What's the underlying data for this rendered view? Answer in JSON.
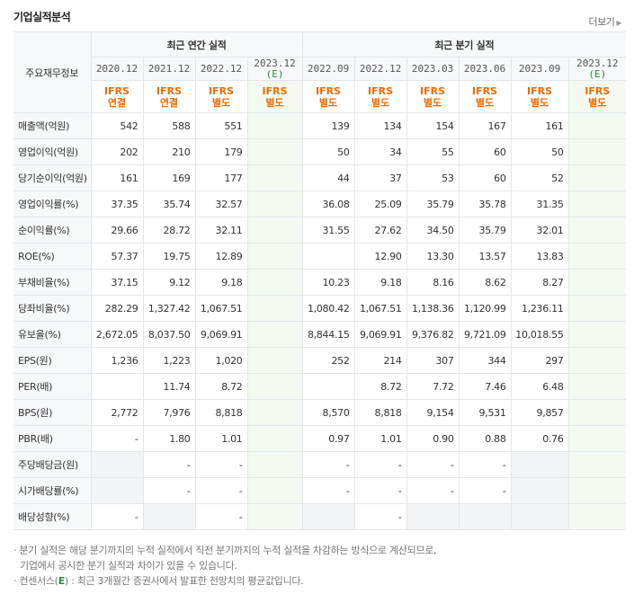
{
  "header": {
    "title": "기업실적분석",
    "more_label": "더보기"
  },
  "table": {
    "corner_label": "주요재무정보",
    "annual_group": "최근 연간 실적",
    "quarter_group": "최근 분기 실적",
    "annual_periods": [
      {
        "label": "2020.12",
        "est": ""
      },
      {
        "label": "2021.12",
        "est": ""
      },
      {
        "label": "2022.12",
        "est": ""
      },
      {
        "label": "2023.12",
        "est": "(E)"
      }
    ],
    "quarter_periods": [
      {
        "label": "2022.09",
        "est": ""
      },
      {
        "label": "2022.12",
        "est": ""
      },
      {
        "label": "2023.03",
        "est": ""
      },
      {
        "label": "2023.06",
        "est": ""
      },
      {
        "label": "2023.09",
        "est": ""
      },
      {
        "label": "2023.12",
        "est": "(E)"
      }
    ],
    "ifrs": [
      [
        "IFRS",
        "연결"
      ],
      [
        "IFRS",
        "연결"
      ],
      [
        "IFRS",
        "별도"
      ],
      [
        "IFRS",
        "별도"
      ],
      [
        "IFRS",
        "별도"
      ],
      [
        "IFRS",
        "별도"
      ],
      [
        "IFRS",
        "별도"
      ],
      [
        "IFRS",
        "별도"
      ],
      [
        "IFRS",
        "별도"
      ],
      [
        "IFRS",
        "별도"
      ]
    ],
    "rows": [
      {
        "label": "매출액(억원)",
        "values": [
          "542",
          "588",
          "551",
          "",
          "139",
          "134",
          "154",
          "167",
          "161",
          ""
        ]
      },
      {
        "label": "영업이익(억원)",
        "values": [
          "202",
          "210",
          "179",
          "",
          "50",
          "34",
          "55",
          "60",
          "50",
          ""
        ]
      },
      {
        "label": "당기순이익(억원)",
        "values": [
          "161",
          "169",
          "177",
          "",
          "44",
          "37",
          "53",
          "60",
          "52",
          ""
        ]
      },
      {
        "label": "영업이익률(%)",
        "values": [
          "37.35",
          "35.74",
          "32.57",
          "",
          "36.08",
          "25.09",
          "35.79",
          "35.78",
          "31.35",
          ""
        ]
      },
      {
        "label": "순이익률(%)",
        "values": [
          "29.66",
          "28.72",
          "32.11",
          "",
          "31.55",
          "27.62",
          "34.50",
          "35.79",
          "32.01",
          ""
        ]
      },
      {
        "label": "ROE(%)",
        "values": [
          "57.37",
          "19.75",
          "12.89",
          "",
          "",
          "12.90",
          "13.30",
          "13.57",
          "13.83",
          ""
        ]
      },
      {
        "label": "부채비율(%)",
        "values": [
          "37.15",
          "9.12",
          "9.18",
          "",
          "10.23",
          "9.18",
          "8.16",
          "8.62",
          "8.27",
          ""
        ]
      },
      {
        "label": "당좌비율(%)",
        "values": [
          "282.29",
          "1,327.42",
          "1,067.51",
          "",
          "1,080.42",
          "1,067.51",
          "1,138.36",
          "1,120.99",
          "1,236.11",
          ""
        ]
      },
      {
        "label": "유보율(%)",
        "values": [
          "2,672.05",
          "8,037.50",
          "9,069.91",
          "",
          "8,844.15",
          "9,069.91",
          "9,376.82",
          "9,721.09",
          "10,018.55",
          ""
        ]
      },
      {
        "label": "EPS(원)",
        "values": [
          "1,236",
          "1,223",
          "1,020",
          "",
          "252",
          "214",
          "307",
          "344",
          "297",
          ""
        ]
      },
      {
        "label": "PER(배)",
        "values": [
          "",
          "11.74",
          "8.72",
          "",
          "",
          "8.72",
          "7.72",
          "7.46",
          "6.48",
          ""
        ]
      },
      {
        "label": "BPS(원)",
        "values": [
          "2,772",
          "7,976",
          "8,818",
          "",
          "8,570",
          "8,818",
          "9,154",
          "9,531",
          "9,857",
          ""
        ]
      },
      {
        "label": "PBR(배)",
        "values": [
          "-",
          "1.80",
          "1.01",
          "",
          "0.97",
          "1.01",
          "0.90",
          "0.88",
          "0.76",
          ""
        ]
      },
      {
        "label": "주당배당금(원)",
        "values": [
          "",
          "-",
          "-",
          "",
          "-",
          "-",
          "-",
          "-",
          "",
          ""
        ]
      },
      {
        "label": "시가배당률(%)",
        "values": [
          "",
          "-",
          "-",
          "",
          "-",
          "-",
          "-",
          "-",
          "",
          ""
        ]
      },
      {
        "label": "배당성향(%)",
        "values": [
          "-",
          "",
          "-",
          "",
          "",
          "-",
          "",
          "",
          "",
          ""
        ]
      }
    ]
  },
  "notes": {
    "line1": "분기 실적은 해당 분기까지의 누적 실적에서 직전 분기까지의 누적 실적을 차감하는 방식으로 계산되므로,",
    "line2": "기업에서 공시한 분기 실적과 차이가 있을 수 있습니다.",
    "line3_prefix": "컨센서스(",
    "line3_e": "E",
    "line3_suffix": ") : 최근 3개월간 증권사에서 발표한 전망치의 평균값입니다."
  }
}
